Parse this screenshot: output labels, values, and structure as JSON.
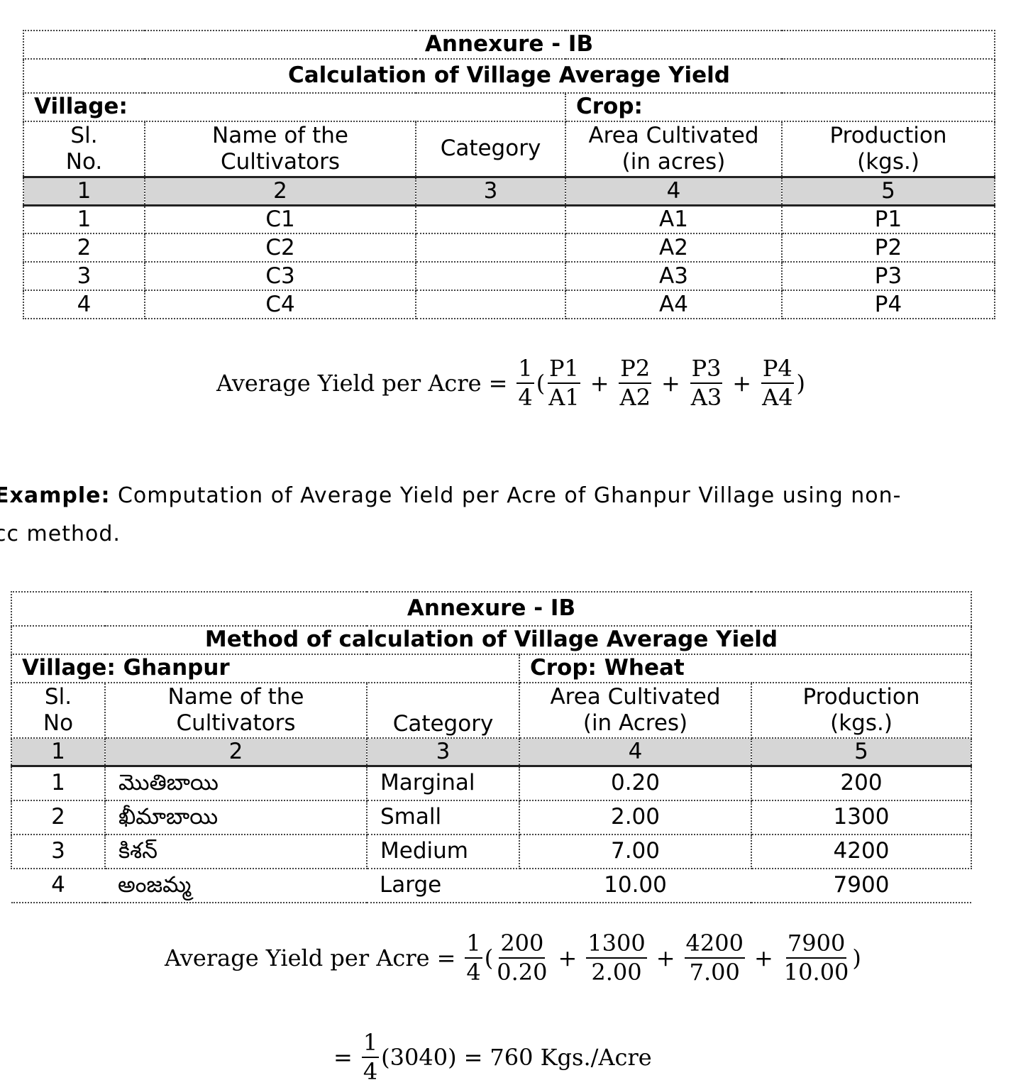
{
  "table1": {
    "annexure": "Annexure - IB",
    "title": "Calculation of Village Average Yield",
    "village_label": "Village:",
    "crop_label": "Crop:",
    "headers": [
      "Sl. No.",
      "Name of the Cultivators",
      "Category",
      "Area Cultivated (in acres)",
      "Production (kgs.)"
    ],
    "header_lines": {
      "sl_1": "Sl.",
      "sl_2": "No.",
      "name_1": "Name of the",
      "name_2": "Cultivators",
      "cat": "Category",
      "area_1": "Area Cultivated",
      "area_2": "(in acres)",
      "prod_1": "Production",
      "prod_2": "(kgs.)"
    },
    "col_numbers": [
      "1",
      "2",
      "3",
      "4",
      "5"
    ],
    "rows": [
      {
        "sl": "1",
        "name": "C1",
        "category": "",
        "area": "A1",
        "production": "P1"
      },
      {
        "sl": "2",
        "name": "C2",
        "category": "",
        "area": "A2",
        "production": "P2"
      },
      {
        "sl": "3",
        "name": "C3",
        "category": "",
        "area": "A3",
        "production": "P3"
      },
      {
        "sl": "4",
        "name": "C4",
        "category": "",
        "area": "A4",
        "production": "P4"
      }
    ]
  },
  "formula1": {
    "lhs": "Average Yield per Acre",
    "eq": "=",
    "coef_num": "1",
    "coef_den": "4",
    "open": "(",
    "close": ")",
    "plus": "+",
    "terms": [
      {
        "num": "P1",
        "den": "A1"
      },
      {
        "num": "P2",
        "den": "A2"
      },
      {
        "num": "P3",
        "den": "A3"
      },
      {
        "num": "P4",
        "den": "A4"
      }
    ]
  },
  "example": {
    "bold": "Example:",
    "line1": " Computation of Average Yield per Acre of Ghanpur Village using non-",
    "line2": "cc method."
  },
  "table2": {
    "annexure": "Annexure - IB",
    "title": "Method of calculation of Village Average Yield",
    "village_label": "Village: Ghanpur",
    "crop_label": "Crop: Wheat",
    "header_lines": {
      "sl_1": "Sl.",
      "sl_2": "No",
      "name_1": "Name of the",
      "name_2": "Cultivators",
      "cat": "Category",
      "area_1": "Area Cultivated",
      "area_2": "(in Acres)",
      "prod_1": "Production",
      "prod_2": "(kgs.)"
    },
    "col_numbers": [
      "1",
      "2",
      "3",
      "4",
      "5"
    ],
    "rows": [
      {
        "sl": "1",
        "name": "మొతిబాయి",
        "category": "Marginal",
        "area": "0.20",
        "production": "200"
      },
      {
        "sl": "2",
        "name": "ఖీమాబాయి",
        "category": "Small",
        "area": "2.00",
        "production": "1300"
      },
      {
        "sl": "3",
        "name": "కిశన్",
        "category": "Medium",
        "area": "7.00",
        "production": "4200"
      },
      {
        "sl": "4",
        "name": "అంజమ్మ",
        "category": "Large",
        "area": "10.00",
        "production": "7900"
      }
    ]
  },
  "formula2": {
    "lhs": "Average Yield per Acre",
    "eq": "=",
    "coef_num": "1",
    "coef_den": "4",
    "open": "(",
    "close": ")",
    "plus": "+",
    "terms": [
      {
        "num": "200",
        "den": "0.20"
      },
      {
        "num": "1300",
        "den": "2.00"
      },
      {
        "num": "4200",
        "den": "7.00"
      },
      {
        "num": "7900",
        "den": "10.00"
      }
    ]
  },
  "formula3": {
    "eq": "=",
    "coef_num": "1",
    "coef_den": "4",
    "inner": "(3040)",
    "eq2": "=",
    "result": "760 Kgs./Acre"
  }
}
